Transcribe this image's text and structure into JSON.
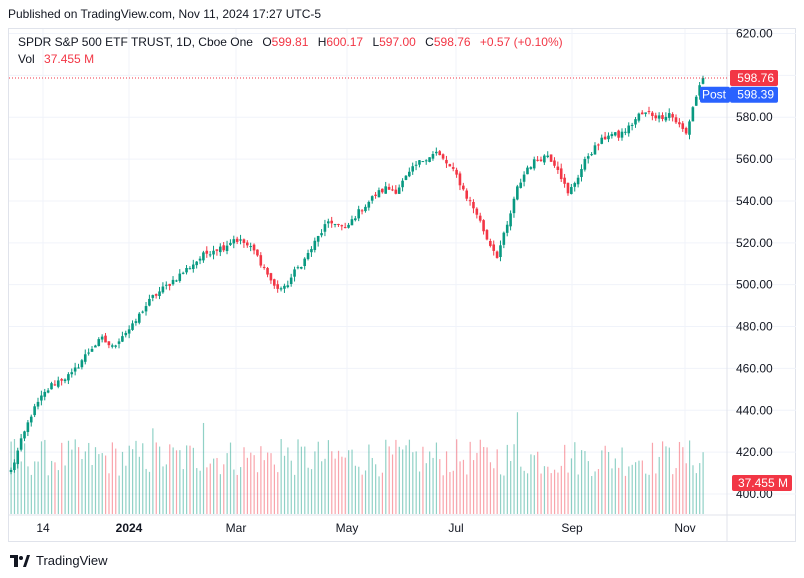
{
  "header": {
    "published": "Published on TradingView.com, Nov 11, 2024 17:27 UTC-5"
  },
  "legend": {
    "symbol": "SPDR S&P 500 ETF TRUST, 1D, Cboe One",
    "o_label": "O",
    "o_value": "599.81",
    "h_label": "H",
    "h_value": "600.17",
    "l_label": "L",
    "l_value": "597.00",
    "c_label": "C",
    "c_value": "598.76",
    "change": "+0.57 (+0.10%)",
    "vol_label": "Vol",
    "vol_value": "37.455 M"
  },
  "footer": {
    "brand": "TradingView"
  },
  "colors": {
    "up": "#089981",
    "down": "#f23645",
    "post": "#2962ff"
  },
  "chart_data": {
    "type": "candlestick",
    "title": "SPDR S&P 500 ETF TRUST, 1D, Cboe One",
    "ylim": [
      390,
      626
    ],
    "y_ticks": [
      400,
      420,
      440,
      460,
      480,
      500,
      520,
      540,
      560,
      580,
      600,
      620
    ],
    "y_tick_labels": [
      "400.00",
      "420.00",
      "440.00",
      "460.00",
      "480.00",
      "500.00",
      "520.00",
      "540.00",
      "560.00",
      "580.00",
      "600.00",
      "620.00"
    ],
    "x_labels": [
      "14",
      "2024",
      "Mar",
      "May",
      "Jul",
      "Sep",
      "Nov"
    ],
    "last_price": 598.76,
    "last_price_label": "598.76",
    "post_label": "Post",
    "post_price": 598.39,
    "post_price_label": "598.39",
    "volume_label": "37.455 M",
    "close_anchors": [
      [
        0,
        411
      ],
      [
        3,
        425
      ],
      [
        6,
        438
      ],
      [
        9,
        446
      ],
      [
        12,
        452
      ],
      [
        15,
        455
      ],
      [
        18,
        457
      ],
      [
        21,
        464
      ],
      [
        24,
        470
      ],
      [
        27,
        474
      ],
      [
        30,
        470
      ],
      [
        33,
        476
      ],
      [
        36,
        480
      ],
      [
        39,
        488
      ],
      [
        42,
        494
      ],
      [
        45,
        498
      ],
      [
        48,
        502
      ],
      [
        51,
        506
      ],
      [
        54,
        510
      ],
      [
        57,
        514
      ],
      [
        60,
        517
      ],
      [
        63,
        518
      ],
      [
        66,
        522
      ],
      [
        69,
        520
      ],
      [
        72,
        516
      ],
      [
        75,
        508
      ],
      [
        78,
        499
      ],
      [
        81,
        498
      ],
      [
        84,
        506
      ],
      [
        87,
        512
      ],
      [
        90,
        520
      ],
      [
        93,
        528
      ],
      [
        96,
        530
      ],
      [
        99,
        526
      ],
      [
        102,
        533
      ],
      [
        105,
        538
      ],
      [
        108,
        543
      ],
      [
        111,
        546
      ],
      [
        114,
        545
      ],
      [
        117,
        551
      ],
      [
        120,
        557
      ],
      [
        123,
        561
      ],
      [
        126,
        563
      ],
      [
        129,
        558
      ],
      [
        132,
        552
      ],
      [
        135,
        542
      ],
      [
        138,
        534
      ],
      [
        141,
        522
      ],
      [
        144,
        514
      ],
      [
        147,
        528
      ],
      [
        150,
        546
      ],
      [
        153,
        556
      ],
      [
        156,
        560
      ],
      [
        159,
        562
      ],
      [
        162,
        556
      ],
      [
        165,
        543
      ],
      [
        168,
        552
      ],
      [
        171,
        562
      ],
      [
        174,
        567
      ],
      [
        177,
        572
      ],
      [
        180,
        571
      ],
      [
        183,
        575
      ],
      [
        186,
        581
      ],
      [
        189,
        582
      ],
      [
        192,
        580
      ],
      [
        195,
        582
      ],
      [
        198,
        576
      ],
      [
        200,
        572
      ],
      [
        202,
        585
      ],
      [
        204,
        595
      ],
      [
        205,
        598.76
      ]
    ],
    "volume_range_millions": [
      25,
      90
    ]
  }
}
